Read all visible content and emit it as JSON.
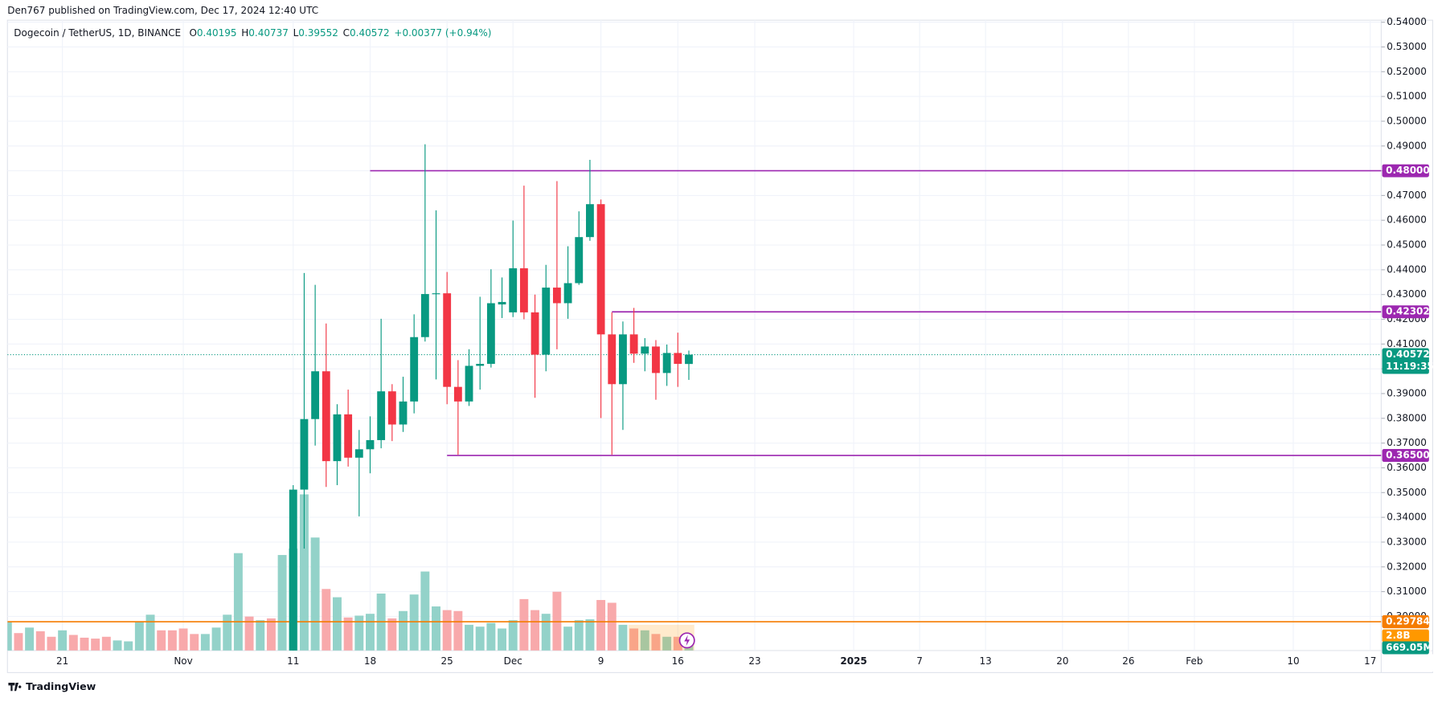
{
  "header": "Den767 published on TradingView.com, Dec 17, 2024 12:40 UTC",
  "brand": "TradingView",
  "chart_data": {
    "type": "candlestick",
    "symbol": "Dogecoin / TetherUS, 1D, BINANCE",
    "legend_labels": [
      "O",
      "H",
      "L",
      "C"
    ],
    "change": "+0.00377 (+0.94%)",
    "countdown": "11:19:35",
    "up_color": "#089981",
    "down_color": "#f23645",
    "volume_up_color": "#93d2c9",
    "volume_down_color": "#f8a9ab",
    "x": [
      "2024-10-16",
      "2024-10-17",
      "2024-10-18",
      "2024-10-19",
      "2024-10-20",
      "2024-10-21",
      "2024-10-22",
      "2024-10-23",
      "2024-10-24",
      "2024-10-25",
      "2024-10-26",
      "2024-10-27",
      "2024-10-28",
      "2024-10-29",
      "2024-10-30",
      "2024-10-31",
      "2024-11-01",
      "2024-11-02",
      "2024-11-03",
      "2024-11-04",
      "2024-11-05",
      "2024-11-06",
      "2024-11-07",
      "2024-11-08",
      "2024-11-09",
      "2024-11-10",
      "2024-11-11",
      "2024-11-12",
      "2024-11-13",
      "2024-11-14",
      "2024-11-15",
      "2024-11-16",
      "2024-11-17",
      "2024-11-18",
      "2024-11-19",
      "2024-11-20",
      "2024-11-21",
      "2024-11-22",
      "2024-11-23",
      "2024-11-24",
      "2024-11-25",
      "2024-11-26",
      "2024-11-27",
      "2024-11-28",
      "2024-11-29",
      "2024-11-30",
      "2024-12-01",
      "2024-12-02",
      "2024-12-03",
      "2024-12-04",
      "2024-12-05",
      "2024-12-06",
      "2024-12-07",
      "2024-12-08",
      "2024-12-09",
      "2024-12-10",
      "2024-12-11",
      "2024-12-12",
      "2024-12-13",
      "2024-12-14",
      "2024-12-15",
      "2024-12-16",
      "2024-12-17"
    ],
    "open": [
      null,
      null,
      null,
      null,
      null,
      null,
      null,
      null,
      null,
      null,
      null,
      null,
      null,
      null,
      null,
      null,
      null,
      null,
      null,
      null,
      null,
      null,
      null,
      null,
      null,
      null,
      0.285,
      0.3512,
      0.3797,
      0.399,
      0.3627,
      0.3816,
      0.3641,
      0.3675,
      0.3712,
      0.3909,
      0.3775,
      0.3868,
      0.4128,
      0.4302,
      0.4305,
      0.3927,
      0.3868,
      0.4012,
      0.402,
      0.426,
      0.4228,
      0.4406,
      0.4228,
      0.4057,
      0.4328,
      0.4265,
      0.4346,
      0.4532,
      0.4665,
      0.4139,
      0.3938,
      0.4139,
      0.4061,
      0.409,
      0.3983,
      0.4064,
      0.40195
    ],
    "high": [
      null,
      null,
      null,
      null,
      null,
      null,
      null,
      null,
      null,
      null,
      null,
      null,
      null,
      null,
      null,
      null,
      null,
      null,
      null,
      null,
      null,
      null,
      null,
      null,
      null,
      null,
      0.353,
      0.4387,
      0.4339,
      0.4183,
      0.3857,
      0.3916,
      0.3753,
      0.3808,
      0.4202,
      0.3938,
      0.3968,
      0.422,
      0.4907,
      0.464,
      0.4391,
      0.4035,
      0.4079,
      0.4291,
      0.4402,
      0.4369,
      0.4599,
      0.474,
      0.43,
      0.442,
      0.4758,
      0.4495,
      0.4636,
      0.4844,
      0.4684,
      0.4228,
      0.4191,
      0.4246,
      0.4124,
      0.4116,
      0.4098,
      0.4146,
      0.40737
    ],
    "low": [
      null,
      null,
      null,
      null,
      null,
      null,
      null,
      null,
      null,
      null,
      null,
      null,
      null,
      null,
      null,
      null,
      null,
      null,
      null,
      null,
      null,
      null,
      null,
      null,
      null,
      null,
      0.28,
      0.3274,
      0.369,
      0.3523,
      0.353,
      0.3605,
      0.3404,
      0.3578,
      0.3679,
      0.3708,
      0.3745,
      0.382,
      0.411,
      0.3957,
      0.3857,
      0.3653,
      0.385,
      0.3916,
      0.4005,
      0.4205,
      0.4209,
      0.42,
      0.3883,
      0.399,
      0.4079,
      0.4202,
      0.4339,
      0.4517,
      0.3801,
      0.3653,
      0.3753,
      0.4024,
      0.399,
      0.3875,
      0.3931,
      0.3927,
      0.39552
    ],
    "close": [
      null,
      null,
      null,
      null,
      null,
      null,
      null,
      null,
      null,
      null,
      null,
      null,
      null,
      null,
      null,
      null,
      null,
      null,
      null,
      null,
      null,
      null,
      null,
      null,
      null,
      null,
      0.3512,
      0.3797,
      0.399,
      0.3627,
      0.3816,
      0.3641,
      0.3675,
      0.3712,
      0.3909,
      0.3775,
      0.3868,
      0.4128,
      0.4302,
      0.4305,
      0.3927,
      0.3868,
      0.4012,
      0.402,
      0.4265,
      0.427,
      0.4406,
      0.4228,
      0.4057,
      0.4328,
      0.4265,
      0.4346,
      0.4532,
      0.4665,
      0.4139,
      0.3938,
      0.4139,
      0.4061,
      0.409,
      0.3983,
      0.4064,
      0.402,
      0.40572
    ],
    "volume": [
      3.1,
      1.9,
      2.5,
      2.1,
      1.5,
      2.2,
      1.7,
      1.4,
      1.3,
      1.5,
      1.1,
      1.0,
      3.1,
      3.9,
      2.2,
      2.2,
      2.4,
      1.8,
      1.8,
      2.5,
      3.9,
      10.6,
      3.7,
      3.3,
      3.5,
      10.4,
      11.1,
      17.0,
      12.3,
      6.7,
      5.8,
      3.6,
      3.8,
      4.0,
      6.2,
      3.5,
      4.3,
      6.1,
      8.6,
      4.8,
      4.4,
      4.3,
      2.8,
      2.6,
      3.0,
      2.4,
      3.3,
      5.6,
      4.4,
      4.0,
      6.4,
      2.6,
      3.3,
      3.4,
      5.5,
      5.2,
      2.8,
      2.4,
      2.2,
      1.8,
      1.5,
      1.5,
      0.66905
    ],
    "volume_up": [
      true,
      false,
      true,
      false,
      false,
      true,
      false,
      false,
      false,
      false,
      true,
      true,
      true,
      true,
      false,
      false,
      false,
      false,
      true,
      true,
      true,
      true,
      false,
      true,
      false,
      true,
      true,
      true,
      true,
      false,
      true,
      false,
      true,
      true,
      true,
      false,
      true,
      true,
      true,
      true,
      false,
      false,
      true,
      true,
      true,
      true,
      true,
      false,
      false,
      true,
      false,
      true,
      true,
      true,
      false,
      false,
      true,
      false,
      true,
      false,
      true,
      false,
      true
    ],
    "volume_last_label": "669.05M",
    "volume_ma": {
      "value": 2.8,
      "label": "2.8B",
      "color": "#ff9800"
    },
    "levels": [
      {
        "value": 0.48,
        "label": "0.48000",
        "from": "2024-11-18",
        "color": "#9c27b0"
      },
      {
        "value": 0.42302,
        "label": "0.42302",
        "from": "2024-12-10",
        "color": "#9c27b0"
      },
      {
        "value": 0.365,
        "label": "0.36500",
        "from": "2024-11-25",
        "color": "#9c27b0"
      },
      {
        "value": 0.29784,
        "label": "0.29784",
        "from": "2024-10-16",
        "color": "#f57c00"
      }
    ],
    "xlim": [
      "2024-10-16",
      "2025-02-18"
    ],
    "xticks": [
      {
        "value": "2024-10-21",
        "label": "21"
      },
      {
        "value": "2024-11-01",
        "label": "Nov"
      },
      {
        "value": "2024-11-11",
        "label": "11"
      },
      {
        "value": "2024-11-18",
        "label": "18"
      },
      {
        "value": "2024-11-25",
        "label": "25"
      },
      {
        "value": "2024-12-01",
        "label": "Dec"
      },
      {
        "value": "2024-12-09",
        "label": "9"
      },
      {
        "value": "2024-12-16",
        "label": "16"
      },
      {
        "value": "2024-12-23",
        "label": "23"
      },
      {
        "value": "2025-01-01",
        "label": "2025"
      },
      {
        "value": "2025-01-07",
        "label": "7"
      },
      {
        "value": "2025-01-13",
        "label": "13"
      },
      {
        "value": "2025-01-20",
        "label": "20"
      },
      {
        "value": "2025-01-26",
        "label": "26"
      },
      {
        "value": "2025-02-01",
        "label": "Feb"
      },
      {
        "value": "2025-02-10",
        "label": "10"
      },
      {
        "value": "2025-02-17",
        "label": "17"
      }
    ],
    "ylim": [
      0.2862,
      0.5408
    ],
    "yticks": [
      {
        "value": 0.3,
        "label": "0.30000"
      },
      {
        "value": 0.31,
        "label": "0.31000"
      },
      {
        "value": 0.32,
        "label": "0.32000"
      },
      {
        "value": 0.33,
        "label": "0.33000"
      },
      {
        "value": 0.34,
        "label": "0.34000"
      },
      {
        "value": 0.35,
        "label": "0.35000"
      },
      {
        "value": 0.36,
        "label": "0.36000"
      },
      {
        "value": 0.37,
        "label": "0.37000"
      },
      {
        "value": 0.38,
        "label": "0.38000"
      },
      {
        "value": 0.39,
        "label": "0.39000"
      },
      {
        "value": 0.4,
        "label": "0.40000"
      },
      {
        "value": 0.41,
        "label": "0.41000"
      },
      {
        "value": 0.42,
        "label": "0.42000"
      },
      {
        "value": 0.43,
        "label": "0.43000"
      },
      {
        "value": 0.44,
        "label": "0.44000"
      },
      {
        "value": 0.45,
        "label": "0.45000"
      },
      {
        "value": 0.46,
        "label": "0.46000"
      },
      {
        "value": 0.47,
        "label": "0.47000"
      },
      {
        "value": 0.48,
        "label": "0.48000"
      },
      {
        "value": 0.49,
        "label": "0.49000"
      },
      {
        "value": 0.5,
        "label": "0.50000"
      },
      {
        "value": 0.51,
        "label": "0.51000"
      },
      {
        "value": 0.52,
        "label": "0.52000"
      },
      {
        "value": 0.53,
        "label": "0.53000"
      },
      {
        "value": 0.54,
        "label": "0.54000"
      }
    ],
    "grid": true
  }
}
